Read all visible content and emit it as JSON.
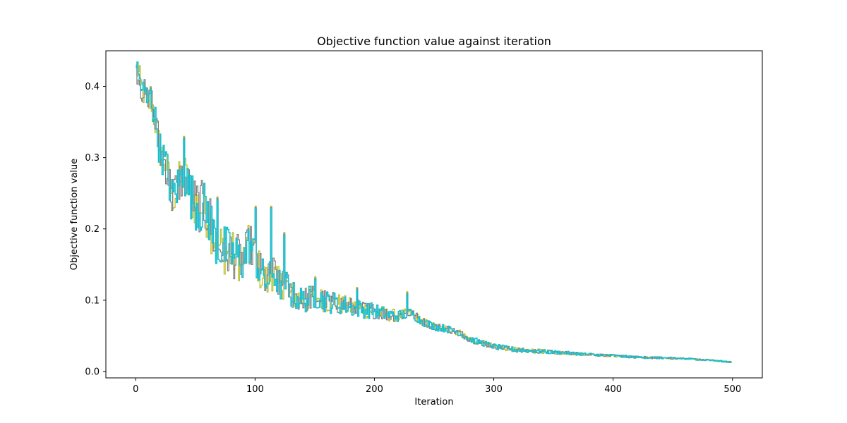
{
  "chart_data": {
    "type": "line",
    "title": "Objective function value against iteration",
    "xlabel": "Iteration",
    "ylabel": "Objective function value",
    "xlim": [
      -25,
      525
    ],
    "ylim": [
      -0.009,
      0.45
    ],
    "xticks": [
      0,
      100,
      200,
      300,
      400,
      500
    ],
    "yticks": [
      0.0,
      0.1,
      0.2,
      0.3,
      0.4
    ],
    "xtick_labels": [
      "0",
      "100",
      "200",
      "300",
      "400",
      "500"
    ],
    "ytick_labels": [
      "0.0",
      "0.1",
      "0.2",
      "0.3",
      "0.4"
    ],
    "grid": false,
    "legend": "none",
    "series_colors": [
      "#17becf",
      "#7f7f7f",
      "#bcbd22"
    ],
    "n_overlaid_series": 3,
    "anchors": {
      "x": [
        0,
        2,
        5,
        8,
        10,
        13,
        15,
        18,
        20,
        25,
        30,
        35,
        40,
        45,
        50,
        55,
        60,
        65,
        70,
        75,
        80,
        85,
        90,
        95,
        100,
        105,
        110,
        115,
        120,
        125,
        130,
        140,
        150,
        160,
        170,
        180,
        190,
        200,
        210,
        220,
        230,
        240,
        250,
        260,
        270,
        280,
        290,
        300,
        320,
        340,
        360,
        380,
        400,
        420,
        440,
        460,
        480,
        499
      ],
      "y": [
        0.43,
        0.415,
        0.395,
        0.385,
        0.375,
        0.38,
        0.36,
        0.33,
        0.31,
        0.29,
        0.245,
        0.26,
        0.28,
        0.25,
        0.235,
        0.23,
        0.225,
        0.19,
        0.175,
        0.17,
        0.165,
        0.16,
        0.155,
        0.18,
        0.16,
        0.135,
        0.125,
        0.14,
        0.12,
        0.125,
        0.108,
        0.1,
        0.105,
        0.098,
        0.095,
        0.09,
        0.087,
        0.085,
        0.08,
        0.078,
        0.082,
        0.07,
        0.063,
        0.06,
        0.055,
        0.045,
        0.04,
        0.035,
        0.03,
        0.028,
        0.026,
        0.024,
        0.022,
        0.02,
        0.019,
        0.018,
        0.016,
        0.013
      ]
    },
    "noise": {
      "x": [
        0,
        60,
        130,
        240,
        300,
        380,
        499
      ],
      "amplitude": [
        0.02,
        0.04,
        0.02,
        0.006,
        0.004,
        0.002,
        0.001
      ]
    },
    "spikes": [
      {
        "x": 0,
        "y": 0.43
      },
      {
        "x": 12,
        "y": 0.4
      },
      {
        "x": 40,
        "y": 0.33
      },
      {
        "x": 68,
        "y": 0.245
      },
      {
        "x": 100,
        "y": 0.232
      },
      {
        "x": 113,
        "y": 0.232
      },
      {
        "x": 124,
        "y": 0.195
      },
      {
        "x": 150,
        "y": 0.133
      },
      {
        "x": 185,
        "y": 0.118
      },
      {
        "x": 227,
        "y": 0.112
      }
    ]
  }
}
